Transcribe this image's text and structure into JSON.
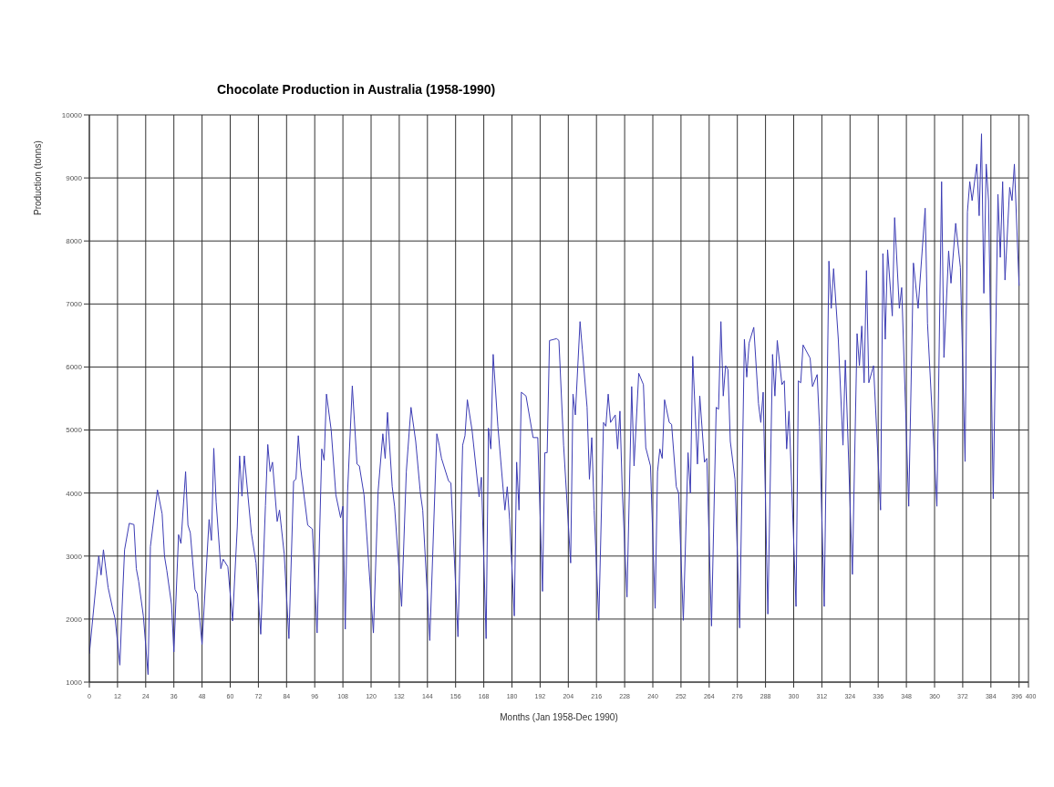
{
  "chart_data": {
    "type": "line",
    "title": "Chocolate Production in Australia (1958-1990)",
    "xlabel": "Months (Jan 1958-Dec 1990)",
    "ylabel": "Production (tonns)",
    "x": [
      0,
      4,
      5,
      6,
      8,
      10,
      11,
      13,
      14,
      15,
      17,
      19,
      20,
      21,
      23,
      25,
      26,
      29,
      31,
      32,
      33,
      35,
      36,
      38,
      39,
      41,
      42,
      43,
      45,
      46,
      48,
      51,
      52,
      53,
      54,
      56,
      57,
      59,
      61,
      63,
      64,
      65,
      66,
      69,
      71,
      73,
      75,
      76,
      77,
      78,
      80,
      81,
      83,
      85,
      87,
      88,
      89,
      90,
      93,
      95,
      97,
      99,
      100,
      101,
      103,
      105,
      107,
      108,
      109,
      110,
      112,
      114,
      115,
      117,
      121,
      123,
      125,
      126,
      127,
      129,
      130,
      133,
      135,
      137,
      139,
      141,
      142,
      145,
      148,
      149,
      150,
      153,
      154,
      157,
      159,
      160,
      161,
      163,
      166,
      167,
      169,
      170,
      171,
      172,
      174,
      177,
      178,
      179,
      181,
      182,
      183,
      184,
      186,
      189,
      191,
      193,
      194,
      195,
      196,
      199,
      200,
      202,
      205,
      206,
      207,
      209,
      210,
      212,
      213,
      214,
      215,
      217,
      219,
      220,
      221,
      222,
      224,
      225,
      226,
      227,
      229,
      231,
      232,
      234,
      236,
      237,
      239,
      241,
      242,
      243,
      244,
      245,
      247,
      248,
      250,
      251,
      253,
      255,
      256,
      257,
      259,
      260,
      262,
      263,
      265,
      267,
      268,
      269,
      270,
      271,
      272,
      273,
      275,
      277,
      279,
      280,
      281,
      283,
      285,
      286,
      287,
      289,
      291,
      292,
      293,
      295,
      296,
      297,
      298,
      301,
      302,
      303,
      304,
      307,
      308,
      310,
      311,
      313,
      315,
      316,
      317,
      319,
      321,
      322,
      325,
      327,
      328,
      329,
      330,
      331,
      332,
      334,
      337,
      338,
      339,
      340,
      342,
      343,
      345,
      346,
      349,
      351,
      353,
      356,
      357,
      361,
      363,
      364,
      366,
      367,
      369,
      371,
      373,
      374,
      375,
      376,
      378,
      379,
      380,
      381,
      382,
      383,
      385,
      387,
      388,
      389,
      390,
      392,
      393,
      394,
      396
    ],
    "series": [
      {
        "color": "#3c3cb4",
        "values": [
          1450,
          3000,
          2700,
          3100,
          2500,
          2150,
          2000,
          1270,
          2230,
          3100,
          3520,
          3500,
          2800,
          2600,
          2050,
          1120,
          3150,
          4050,
          3670,
          3000,
          2770,
          2230,
          1480,
          3340,
          3200,
          4340,
          3490,
          3370,
          2470,
          2400,
          1600,
          3580,
          3250,
          4710,
          3860,
          2800,
          2950,
          2830,
          1970,
          3460,
          4590,
          3950,
          4590,
          3370,
          2890,
          1760,
          3800,
          4770,
          4340,
          4490,
          3550,
          3730,
          3030,
          1690,
          4190,
          4220,
          4910,
          4400,
          3490,
          3430,
          1780,
          4700,
          4520,
          5570,
          5000,
          3970,
          3610,
          3790,
          1840,
          4030,
          5700,
          4460,
          4430,
          3970,
          1780,
          4030,
          4940,
          4550,
          5280,
          4100,
          3790,
          2200,
          4340,
          5360,
          4820,
          4000,
          3730,
          1660,
          4940,
          4760,
          4550,
          4190,
          4160,
          1720,
          4760,
          4910,
          5480,
          5000,
          3940,
          4250,
          1690,
          5030,
          4700,
          6200,
          5060,
          3730,
          4100,
          3580,
          2050,
          4490,
          3730,
          5600,
          5540,
          4880,
          4880,
          2440,
          4640,
          4640,
          6420,
          6450,
          6420,
          4760,
          2890,
          5570,
          5240,
          6720,
          6270,
          5360,
          4220,
          4880,
          3730,
          1980,
          5120,
          5060,
          5570,
          5120,
          5240,
          4700,
          5300,
          4030,
          2350,
          5690,
          4430,
          5900,
          5720,
          4720,
          4430,
          2170,
          4340,
          4700,
          4550,
          5480,
          5120,
          5090,
          4100,
          4000,
          1980,
          4640,
          4000,
          6170,
          4460,
          5540,
          4490,
          4550,
          1890,
          5360,
          5330,
          6720,
          5540,
          6020,
          5960,
          4820,
          4220,
          1860,
          6440,
          5840,
          6380,
          6630,
          5420,
          5120,
          5600,
          2080,
          6200,
          5540,
          6420,
          5720,
          5780,
          4700,
          5300,
          2200,
          5780,
          5750,
          6350,
          6140,
          5690,
          5880,
          5060,
          2200,
          7680,
          6930,
          7560,
          6440,
          4760,
          6110,
          2710,
          6530,
          6020,
          6650,
          5750,
          7530,
          5750,
          6020,
          3730,
          7800,
          6440,
          7860,
          6810,
          8370,
          6930,
          7260,
          3790,
          7650,
          6930,
          8520,
          6690,
          3790,
          8940,
          6150,
          7840,
          7330,
          8280,
          7580,
          4500,
          8460,
          8940,
          8640,
          9220,
          8400,
          9700,
          7170,
          9220,
          8640,
          3910,
          8740,
          7740,
          8940,
          7380,
          8850,
          8640,
          9220,
          7290
        ]
      }
    ],
    "xlim": [
      0,
      400
    ],
    "xticks": [
      0,
      12,
      24,
      36,
      48,
      60,
      72,
      84,
      96,
      108,
      120,
      132,
      144,
      156,
      168,
      180,
      192,
      204,
      216,
      228,
      240,
      252,
      264,
      276,
      288,
      300,
      312,
      324,
      336,
      348,
      360,
      372,
      384,
      396,
      400
    ],
    "ylim": [
      1000,
      10000
    ],
    "yticks": [
      1000,
      2000,
      3000,
      4000,
      5000,
      6000,
      7000,
      8000,
      9000,
      10000
    ],
    "grid": true,
    "legend": false,
    "marker": "none",
    "line_style": "solid"
  }
}
